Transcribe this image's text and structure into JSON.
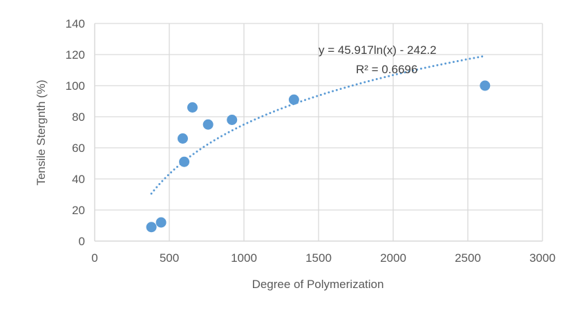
{
  "chart_data": {
    "type": "scatter",
    "title": "",
    "xlabel": "Degree of Polymerization",
    "ylabel": "Tensile Stergnth (%)",
    "xlim": [
      0,
      3000
    ],
    "ylim": [
      0,
      140
    ],
    "x_ticks": [
      0,
      500,
      1000,
      1500,
      2000,
      2500,
      3000
    ],
    "y_ticks": [
      0,
      20,
      40,
      60,
      80,
      100,
      120,
      140
    ],
    "grid": true,
    "legend": "none",
    "series": [
      {
        "color": "#5B9BD5",
        "points": [
          {
            "x": 380,
            "y": 9
          },
          {
            "x": 445,
            "y": 12
          },
          {
            "x": 590,
            "y": 66
          },
          {
            "x": 600,
            "y": 51
          },
          {
            "x": 655,
            "y": 86
          },
          {
            "x": 760,
            "y": 75
          },
          {
            "x": 920,
            "y": 78
          },
          {
            "x": 1335,
            "y": 91
          },
          {
            "x": 2615,
            "y": 100
          }
        ]
      }
    ],
    "trendline": {
      "type": "logarithmic",
      "a": 45.917,
      "b": -242.2,
      "x_range": [
        380,
        2615
      ],
      "style": "dotted",
      "color": "#5B9BD5",
      "equation": "y = 45.917ln(x) - 242.2",
      "r_squared": "R² = 0.6696"
    }
  }
}
